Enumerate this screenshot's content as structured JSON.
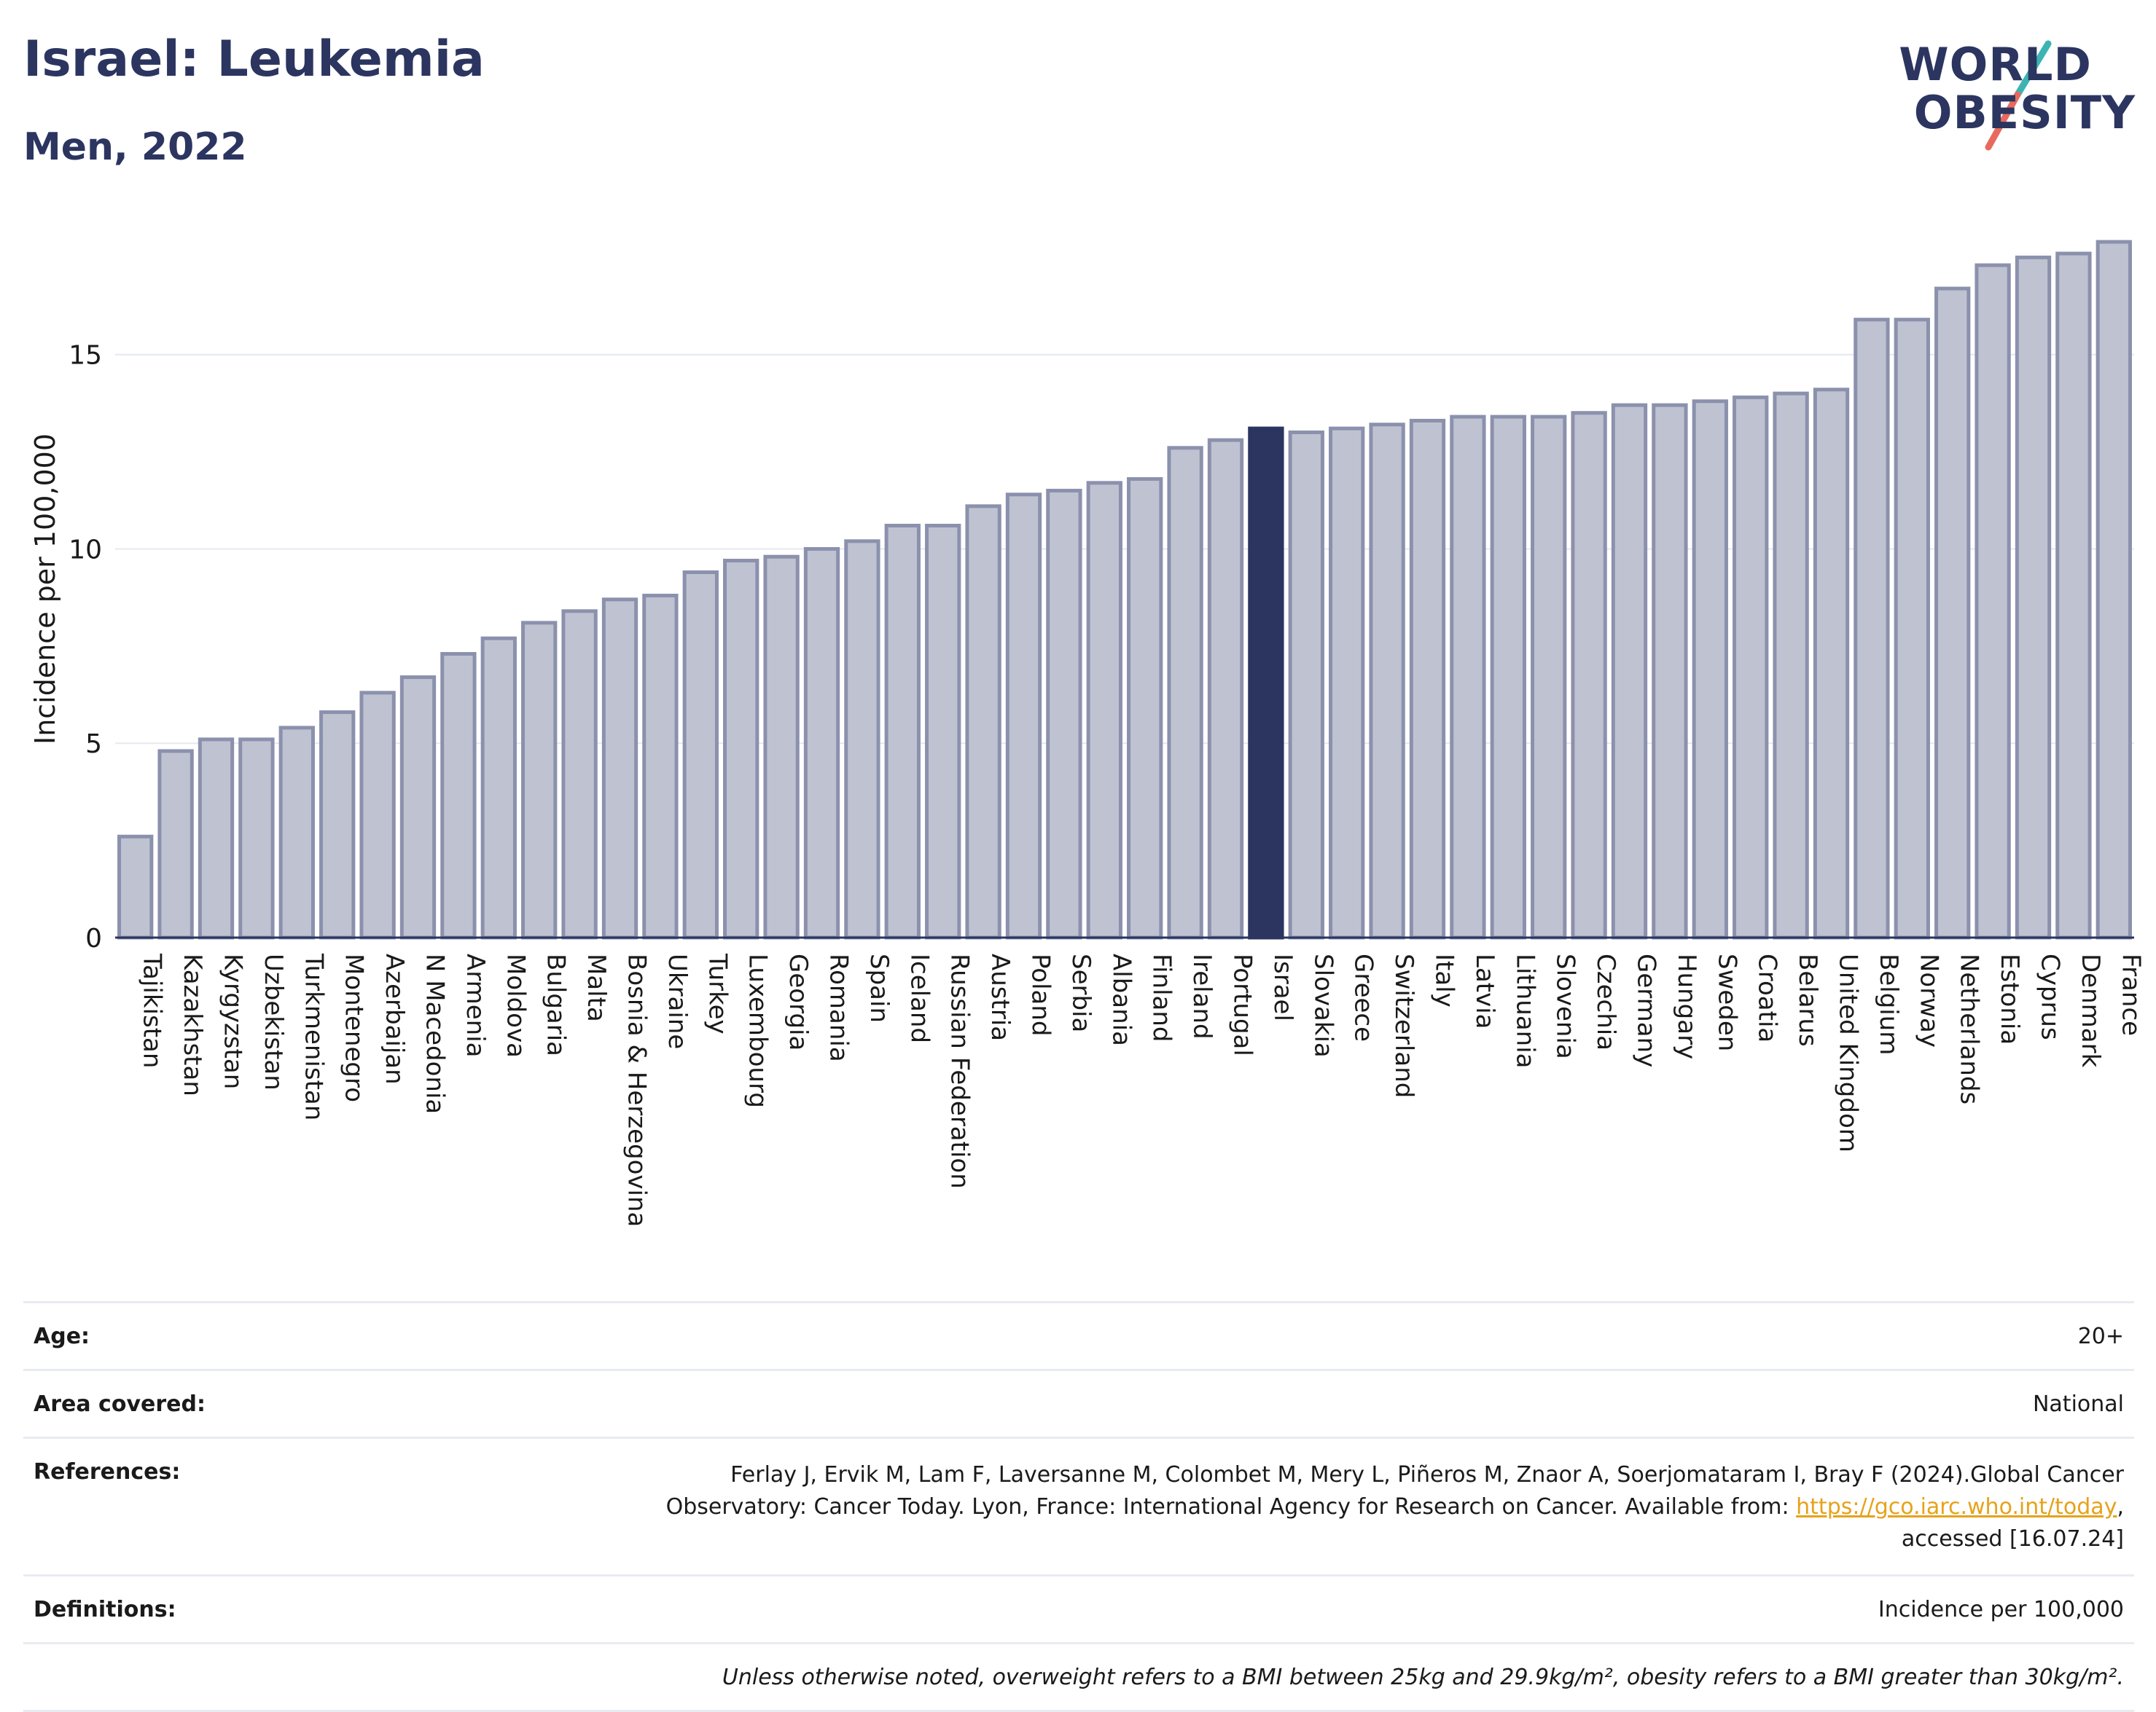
{
  "header": {
    "title": "Israel: Leukemia",
    "subtitle": "Men, 2022"
  },
  "logo": {
    "line1": "WORLD",
    "line2": "OBESITY"
  },
  "colors": {
    "bar": "#bfc3d1",
    "bar_stroke": "#8b91ad",
    "highlight": "#2b3560",
    "title": "#2b3560",
    "logo_teal": "#3cb4b4",
    "logo_red": "#e86a5e",
    "link": "#e6a21a"
  },
  "chart_data": {
    "type": "bar",
    "ylabel": "Incidence per 100,000",
    "xlabel": "",
    "ylim": [
      0,
      18
    ],
    "yticks": [
      0,
      5,
      10,
      15
    ],
    "grid": true,
    "highlight": "Israel",
    "categories": [
      "Tajikistan",
      "Kazakhstan",
      "Kyrgyzstan",
      "Uzbekistan",
      "Turkmenistan",
      "Montenegro",
      "Azerbaijan",
      "N Macedonia",
      "Armenia",
      "Moldova",
      "Bulgaria",
      "Malta",
      "Bosnia & Herzegovina",
      "Ukraine",
      "Turkey",
      "Luxembourg",
      "Georgia",
      "Romania",
      "Spain",
      "Iceland",
      "Russian Federation",
      "Austria",
      "Poland",
      "Serbia",
      "Albania",
      "Finland",
      "Ireland",
      "Portugal",
      "Israel",
      "Slovakia",
      "Greece",
      "Switzerland",
      "Italy",
      "Latvia",
      "Lithuania",
      "Slovenia",
      "Czechia",
      "Germany",
      "Hungary",
      "Sweden",
      "Croatia",
      "Belarus",
      "United Kingdom",
      "Belgium",
      "Norway",
      "Netherlands",
      "Estonia",
      "Cyprus",
      "Denmark",
      "France"
    ],
    "values": [
      2.6,
      4.8,
      5.1,
      5.1,
      5.4,
      5.8,
      6.3,
      6.7,
      7.3,
      7.7,
      8.1,
      8.4,
      8.7,
      8.8,
      9.4,
      9.7,
      9.8,
      10.0,
      10.2,
      10.6,
      10.6,
      11.1,
      11.4,
      11.5,
      11.7,
      11.8,
      12.6,
      12.8,
      13.1,
      13.0,
      13.1,
      13.2,
      13.3,
      13.4,
      13.4,
      13.4,
      13.5,
      13.7,
      13.7,
      13.8,
      13.9,
      14.0,
      14.1,
      15.9,
      15.9,
      16.7,
      17.3,
      17.5,
      17.6,
      17.9
    ]
  },
  "info": {
    "age_label": "Age:",
    "age_value": "20+",
    "area_label": "Area covered:",
    "area_value": "National",
    "references_label": "References:",
    "references_line1": "Ferlay J, Ervik M, Lam F, Laversanne M, Colombet M, Mery L, Piñeros M, Znaor A, Soerjomataram I, Bray F (2024).Global Cancer",
    "references_line2": "Observatory: Cancer Today. Lyon, France: International Agency for Research on Cancer. Available from: ",
    "references_link": "https://gco.iarc.who.int/today",
    "references_line2_end": ",",
    "references_line3": "accessed [16.07.24]",
    "definitions_label": "Definitions:",
    "definitions_value": "Incidence per 100,000",
    "note": "Unless otherwise noted, overweight refers to a BMI between 25kg and 29.9kg/m², obesity refers to a BMI greater than 30kg/m²."
  }
}
